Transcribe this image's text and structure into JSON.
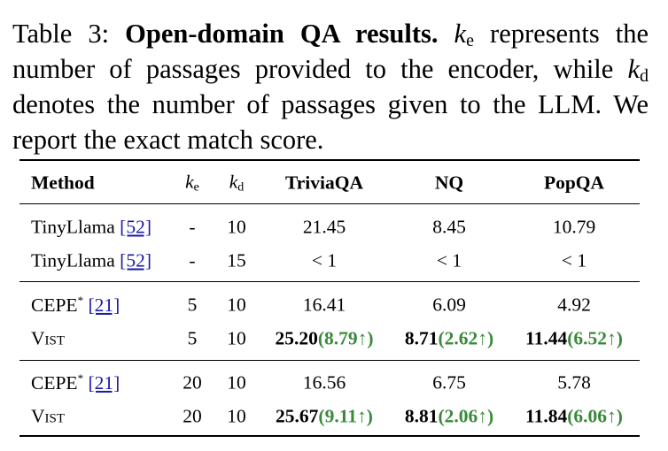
{
  "caption": {
    "label": "Table 3:",
    "title": "Open-domain QA results.",
    "k": "k",
    "sub_e": "e",
    "text_1": "represents the number of passages provided to the encoder, while",
    "sub_d": "d",
    "text_2": "denotes the number of passages given to the LLM. We report the exact match score."
  },
  "table": {
    "header": {
      "method": "Method",
      "k_e": {
        "k": "k",
        "sub": "e"
      },
      "k_d": {
        "k": "k",
        "sub": "d"
      },
      "triviaqa": "TriviaQA",
      "nq": "NQ",
      "popqa": "PopQA"
    },
    "rows": [
      {
        "method": "TinyLlama",
        "ref": "[52]",
        "k_e": "-",
        "k_d": "10",
        "triviaqa": "21.45",
        "nq": "8.45",
        "popqa": "10.79"
      },
      {
        "method": "TinyLlama",
        "ref": "[52]",
        "k_e": "-",
        "k_d": "15",
        "triviaqa": "< 1",
        "nq": "< 1",
        "popqa": "< 1"
      },
      {
        "method": "CEPE",
        "sup": "*",
        "ref": "[21]",
        "k_e": "5",
        "k_d": "10",
        "triviaqa": "16.41",
        "nq": "6.09",
        "popqa": "4.92"
      },
      {
        "method": "Vist",
        "k_e": "5",
        "k_d": "10",
        "triviaqa": {
          "score": "25.20",
          "gain": "(8.79↑)"
        },
        "nq": {
          "score": "8.71",
          "gain": "(2.62↑)"
        },
        "popqa": {
          "score": "11.44",
          "gain": "(6.52↑)"
        }
      },
      {
        "method": "CEPE",
        "sup": "*",
        "ref": "[21]",
        "k_e": "20",
        "k_d": "10",
        "triviaqa": "16.56",
        "nq": "6.75",
        "popqa": "5.78"
      },
      {
        "method": "Vist",
        "k_e": "20",
        "k_d": "10",
        "triviaqa": {
          "score": "25.67",
          "gain": "(9.11↑)"
        },
        "nq": {
          "score": "8.81",
          "gain": "(2.06↑)"
        },
        "popqa": {
          "score": "11.84",
          "gain": "(6.06↑)"
        }
      }
    ]
  }
}
